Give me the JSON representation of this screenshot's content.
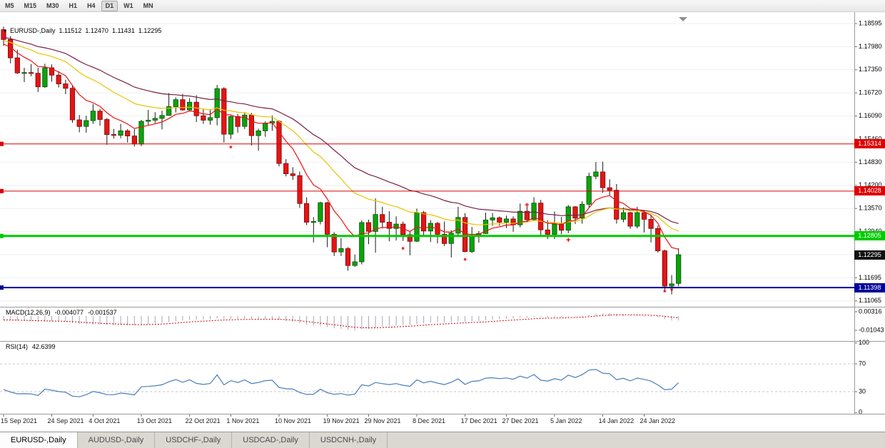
{
  "toolbar": {
    "timeframes": [
      "M5",
      "M15",
      "M30",
      "H1",
      "H4",
      "D1",
      "W1",
      "MN"
    ],
    "active": "D1"
  },
  "chart_header": {
    "dropdown_icon": "symbol-dropdown",
    "symbol": "EURUSD-,Daily",
    "open": "1.11512",
    "high": "1.12470",
    "low": "1.11431",
    "close": "1.12295"
  },
  "price_axis": {
    "ticks": [
      "1.18595",
      "1.17980",
      "1.17350",
      "1.16720",
      "1.16090",
      "1.15460",
      "1.14830",
      "1.14200",
      "1.13570",
      "1.12940",
      "1.12310",
      "1.11695",
      "1.11065"
    ],
    "macd_ticks": [
      "0.00316",
      "-0.01043"
    ],
    "rsi_ticks": [
      "100",
      "70",
      "30",
      "0"
    ]
  },
  "levels": [
    {
      "name": "resistance-line-upper",
      "label": "1.15314",
      "value": 1.15314,
      "color": "#dd0000",
      "thickness": 1
    },
    {
      "name": "resistance-line-lower",
      "label": "1.14028",
      "value": 1.14028,
      "color": "#dd0000",
      "thickness": 1
    },
    {
      "name": "support-line-green",
      "label": "1.12805",
      "value": 1.12805,
      "color": "#00cc00",
      "thickness": 3
    },
    {
      "name": "current-price",
      "label": "1.12295",
      "value": 1.12295,
      "color": "#111111",
      "thickness": 0
    },
    {
      "name": "support-line-blue",
      "label": "1.11398",
      "value": 1.11398,
      "color": "#000096",
      "thickness": 2
    }
  ],
  "indicators": {
    "macd": {
      "name": "MACD(12,26,9)",
      "main": "-0.004077",
      "signal": "-0.001537",
      "histogram_color": "#a6a6ba",
      "signal_color": "#cf0000"
    },
    "rsi": {
      "name": "RSI(14)",
      "value": "42.6399",
      "line_color": "#4a7ebb",
      "levels": [
        70,
        30
      ]
    }
  },
  "tabs": {
    "items": [
      "EURUSD-,Daily",
      "AUDUSD-,Daily",
      "USDCHF-,Daily",
      "USDCAD-,Daily",
      "USDCNH-,Daily"
    ],
    "active_index": 0
  },
  "chart_data": {
    "type": "candlestick",
    "symbol": "EURUSD-",
    "period": "Daily",
    "up_color": "#0ba30b",
    "down_color": "#e41515",
    "moving_averages": [
      {
        "period": 8,
        "color": "#ee1111",
        "style": "fast"
      },
      {
        "period": 21,
        "color": "#e8c400",
        "style": "medium"
      },
      {
        "period": 34,
        "color": "#7a1f45",
        "style": "slow"
      }
    ],
    "x_labels": [
      {
        "text": "15 Sep 2021",
        "index": 0
      },
      {
        "text": "24 Sep 2021",
        "index": 7
      },
      {
        "text": "4 Oct 2021",
        "index": 13
      },
      {
        "text": "13 Oct 2021",
        "index": 20
      },
      {
        "text": "22 Oct 2021",
        "index": 27
      },
      {
        "text": "1 Nov 2021",
        "index": 33
      },
      {
        "text": "10 Nov 2021",
        "index": 40
      },
      {
        "text": "19 Nov 2021",
        "index": 47
      },
      {
        "text": "29 Nov 2021",
        "index": 53
      },
      {
        "text": "8 Dec 2021",
        "index": 60
      },
      {
        "text": "17 Dec 2021",
        "index": 67
      },
      {
        "text": "27 Dec 2021",
        "index": 73
      },
      {
        "text": "5 Jan 2022",
        "index": 80
      },
      {
        "text": "14 Jan 2022",
        "index": 87
      },
      {
        "text": "24 Jan 2022",
        "index": 93
      }
    ],
    "candles": [
      [
        1.1843,
        1.1851,
        1.1799,
        1.1816
      ],
      [
        1.1816,
        1.1825,
        1.1751,
        1.1766
      ],
      [
        1.1766,
        1.1788,
        1.1722,
        1.1725
      ],
      [
        1.1725,
        1.1739,
        1.17,
        1.1726
      ],
      [
        1.1726,
        1.1749,
        1.1716,
        1.1724
      ],
      [
        1.1724,
        1.1739,
        1.1673,
        1.1687
      ],
      [
        1.1687,
        1.175,
        1.1684,
        1.1739
      ],
      [
        1.1739,
        1.1748,
        1.1701,
        1.1719
      ],
      [
        1.1719,
        1.173,
        1.1685,
        1.1695
      ],
      [
        1.1695,
        1.1706,
        1.1667,
        1.1683
      ],
      [
        1.1683,
        1.169,
        1.1589,
        1.1597
      ],
      [
        1.1597,
        1.161,
        1.1563,
        1.1579
      ],
      [
        1.1579,
        1.1608,
        1.1562,
        1.1595
      ],
      [
        1.1595,
        1.164,
        1.1586,
        1.1621
      ],
      [
        1.1621,
        1.1627,
        1.1581,
        1.1598
      ],
      [
        1.1598,
        1.1602,
        1.1529,
        1.1557
      ],
      [
        1.1557,
        1.1572,
        1.1546,
        1.1555
      ],
      [
        1.1555,
        1.1586,
        1.1547,
        1.1567
      ],
      [
        1.1567,
        1.1572,
        1.1535,
        1.1553
      ],
      [
        1.1553,
        1.1572,
        1.1524,
        1.1531
      ],
      [
        1.1531,
        1.1597,
        1.1525,
        1.1593
      ],
      [
        1.1593,
        1.1624,
        1.1583,
        1.1596
      ],
      [
        1.1596,
        1.1618,
        1.1588,
        1.1601
      ],
      [
        1.1601,
        1.1622,
        1.1571,
        1.1609
      ],
      [
        1.1609,
        1.167,
        1.1609,
        1.1633
      ],
      [
        1.1633,
        1.1658,
        1.1617,
        1.1652
      ],
      [
        1.1652,
        1.1668,
        1.1622,
        1.1624
      ],
      [
        1.1624,
        1.1656,
        1.162,
        1.1645
      ],
      [
        1.1645,
        1.1664,
        1.1591,
        1.1608
      ],
      [
        1.1608,
        1.1626,
        1.1586,
        1.1596
      ],
      [
        1.1596,
        1.1626,
        1.1584,
        1.1603
      ],
      [
        1.1603,
        1.1692,
        1.1582,
        1.1682
      ],
      [
        1.1682,
        1.1686,
        1.1535,
        1.1558
      ],
      [
        1.1558,
        1.1609,
        1.1545,
        1.1606
      ],
      [
        1.1606,
        1.1613,
        1.1562,
        1.1579
      ],
      [
        1.1579,
        1.1617,
        1.1572,
        1.161
      ],
      [
        1.161,
        1.1616,
        1.1527,
        1.1554
      ],
      [
        1.1554,
        1.1573,
        1.1513,
        1.1567
      ],
      [
        1.1567,
        1.1593,
        1.1551,
        1.1588
      ],
      [
        1.1588,
        1.1609,
        1.1567,
        1.1593
      ],
      [
        1.1593,
        1.1596,
        1.147,
        1.1478
      ],
      [
        1.1478,
        1.149,
        1.1443,
        1.145
      ],
      [
        1.145,
        1.1468,
        1.1433,
        1.1445
      ],
      [
        1.1445,
        1.1456,
        1.1357,
        1.1369
      ],
      [
        1.1369,
        1.1386,
        1.131,
        1.1318
      ],
      [
        1.1318,
        1.1332,
        1.1263,
        1.132
      ],
      [
        1.132,
        1.1374,
        1.1312,
        1.1371
      ],
      [
        1.1371,
        1.1374,
        1.125,
        1.1285
      ],
      [
        1.1285,
        1.1291,
        1.1226,
        1.1237
      ],
      [
        1.1237,
        1.1275,
        1.1226,
        1.1246
      ],
      [
        1.1246,
        1.125,
        1.1186,
        1.12
      ],
      [
        1.12,
        1.123,
        1.1196,
        1.121
      ],
      [
        1.121,
        1.1323,
        1.1203,
        1.1317
      ],
      [
        1.1317,
        1.1325,
        1.1258,
        1.1293
      ],
      [
        1.1293,
        1.1383,
        1.1235,
        1.1339
      ],
      [
        1.1339,
        1.136,
        1.1301,
        1.1318
      ],
      [
        1.1318,
        1.1348,
        1.1266,
        1.1301
      ],
      [
        1.1301,
        1.1334,
        1.1268,
        1.1313
      ],
      [
        1.1313,
        1.132,
        1.1267,
        1.1284
      ],
      [
        1.1284,
        1.1292,
        1.1228,
        1.1266
      ],
      [
        1.1266,
        1.1355,
        1.1264,
        1.1344
      ],
      [
        1.1344,
        1.1349,
        1.128,
        1.1294
      ],
      [
        1.1294,
        1.1324,
        1.1264,
        1.1315
      ],
      [
        1.1315,
        1.1319,
        1.126,
        1.1285
      ],
      [
        1.1285,
        1.132,
        1.1253,
        1.126
      ],
      [
        1.126,
        1.1296,
        1.1222,
        1.1288
      ],
      [
        1.1288,
        1.136,
        1.1281,
        1.1331
      ],
      [
        1.1331,
        1.1343,
        1.1236,
        1.1238
      ],
      [
        1.1238,
        1.1305,
        1.1234,
        1.128
      ],
      [
        1.128,
        1.1294,
        1.1262,
        1.1287
      ],
      [
        1.1287,
        1.1344,
        1.1286,
        1.1324
      ],
      [
        1.1324,
        1.1343,
        1.1308,
        1.133
      ],
      [
        1.133,
        1.1334,
        1.1308,
        1.1318
      ],
      [
        1.1318,
        1.1336,
        1.1302,
        1.1327
      ],
      [
        1.1327,
        1.1334,
        1.1292,
        1.1311
      ],
      [
        1.1311,
        1.1369,
        1.1304,
        1.1348
      ],
      [
        1.1348,
        1.136,
        1.132,
        1.1325
      ],
      [
        1.1325,
        1.1386,
        1.1321,
        1.137
      ],
      [
        1.137,
        1.1379,
        1.1279,
        1.1297
      ],
      [
        1.1297,
        1.1323,
        1.1272,
        1.1285
      ],
      [
        1.1285,
        1.1347,
        1.1272,
        1.1313
      ],
      [
        1.1313,
        1.1332,
        1.1285,
        1.1296
      ],
      [
        1.1296,
        1.1365,
        1.1288,
        1.136
      ],
      [
        1.136,
        1.1362,
        1.1313,
        1.1329
      ],
      [
        1.1329,
        1.1375,
        1.1314,
        1.1367
      ],
      [
        1.1367,
        1.1453,
        1.1356,
        1.1443
      ],
      [
        1.1443,
        1.1482,
        1.1435,
        1.1455
      ],
      [
        1.1455,
        1.1483,
        1.1398,
        1.1412
      ],
      [
        1.1412,
        1.1435,
        1.1392,
        1.1405
      ],
      [
        1.1405,
        1.1422,
        1.1314,
        1.1326
      ],
      [
        1.1326,
        1.1358,
        1.1318,
        1.1344
      ],
      [
        1.1344,
        1.1346,
        1.13,
        1.1307
      ],
      [
        1.1307,
        1.136,
        1.1301,
        1.1344
      ],
      [
        1.1344,
        1.1349,
        1.129,
        1.1326
      ],
      [
        1.1326,
        1.1339,
        1.1263,
        1.1301
      ],
      [
        1.1301,
        1.1309,
        1.1235,
        1.124
      ],
      [
        1.124,
        1.1243,
        1.1131,
        1.1144
      ],
      [
        1.1144,
        1.1174,
        1.1121,
        1.115
      ],
      [
        1.11512,
        1.1247,
        1.11431,
        1.12295
      ]
    ],
    "markers": [
      {
        "i": 33,
        "p": 1.1518,
        "glyph": "*"
      },
      {
        "i": 58,
        "p": 1.1242,
        "glyph": "*"
      },
      {
        "i": 67,
        "p": 1.1212,
        "glyph": "*"
      },
      {
        "i": 76,
        "p": 1.1364,
        "glyph": "+"
      },
      {
        "i": 82,
        "p": 1.1268,
        "glyph": "+"
      },
      {
        "i": 96,
        "p": 1.1125,
        "glyph": "*"
      },
      {
        "i": 97,
        "p": 1.113,
        "glyph": "*"
      }
    ]
  }
}
